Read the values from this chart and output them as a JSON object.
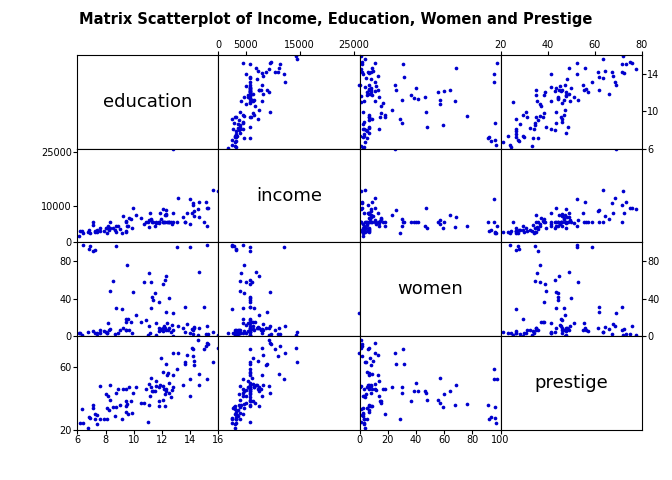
{
  "title": "Matrix Scatterplot of Income, Education, Women and Prestige",
  "variables": [
    "education",
    "income",
    "women",
    "prestige"
  ],
  "dot_color": "#0000CD",
  "dot_size": 7,
  "education": [
    13.11,
    12.79,
    12.05,
    12.26,
    11.86,
    14.64,
    15.64,
    15.09,
    14.52,
    14.13,
    14.02,
    12.27,
    12.24,
    11.13,
    11.79,
    14.0,
    10.17,
    11.22,
    12.27,
    11.59,
    12.79,
    14.6,
    15.22,
    9.84,
    9.45,
    8.55,
    10.76,
    9.93,
    7.11,
    6.84,
    11.24,
    8.1,
    10.54,
    9.21,
    11.09,
    9.64,
    12.63,
    13.47,
    12.17,
    11.07,
    11.53,
    11.78,
    12.52,
    12.73,
    12.8,
    7.58,
    7.26,
    11.56,
    13.6,
    15.01,
    8.76,
    6.1,
    7.38,
    8.64,
    9.88,
    11.33,
    9.58,
    10.99,
    11.8,
    10.88,
    7.12,
    8.15,
    12.04,
    8.76,
    6.9,
    7.24,
    8.34,
    6.43,
    9.53,
    12.2,
    13.09,
    7.64,
    6.32,
    7.4,
    6.76,
    14.22,
    15.96,
    8.0,
    8.86,
    9.2,
    9.44,
    8.3,
    9.42,
    7.86,
    9.03,
    6.19,
    8.27,
    13.62,
    9.42,
    11.4,
    8.14,
    12.49,
    12.33,
    14.25,
    11.9,
    15.21,
    13.74,
    14.29,
    15.28,
    12.05,
    14.21,
    12.4
  ],
  "income": [
    12351,
    25879,
    9271,
    8865,
    8286,
    11187,
    14558,
    11299,
    9374,
    8034,
    12130,
    7562,
    7482,
    8033,
    5765,
    5092,
    7562,
    6477,
    7842,
    5765,
    8049,
    6936,
    4505,
    6389,
    5993,
    4064,
    5148,
    9424,
    5765,
    3316,
    6148,
    3939,
    6799,
    7375,
    6344,
    6641,
    5765,
    7028,
    5765,
    4171,
    4686,
    5498,
    5765,
    5065,
    5765,
    3152,
    3005,
    5459,
    5765,
    5765,
    4522,
    1688,
    3027,
    3544,
    4059,
    5765,
    4573,
    5765,
    5765,
    5765,
    4716,
    4449,
    5765,
    2849,
    2551,
    3162,
    4049,
    2498,
    4685,
    5765,
    5765,
    4053,
    3080,
    3422,
    2985,
    10959,
    14238,
    3881,
    4542,
    2596,
    3199,
    5765,
    5765,
    3288,
    3817,
    3162,
    3547,
    5765,
    3025,
    5765,
    2734,
    5765,
    5765,
    8722,
    6400,
    9593,
    8279,
    7305,
    9686,
    5765,
    10432,
    5765
  ],
  "women": [
    11.16,
    24.94,
    8.13,
    25.68,
    6.35,
    8.89,
    4.02,
    1.91,
    1.06,
    7.02,
    95.23,
    64.15,
    8.42,
    3.46,
    8.9,
    2.71,
    22.73,
    30.07,
    6.37,
    1.34,
    6.89,
    68.41,
    97.51,
    15.43,
    14.55,
    59.12,
    57.3,
    46.91,
    90.76,
    93.27,
    57.37,
    3.29,
    15.36,
    8.52,
    10.86,
    6.38,
    3.83,
    8.2,
    10.71,
    67.42,
    46.41,
    4.95,
    8.16,
    11.97,
    0.5,
    2.85,
    2.75,
    13.5,
    4.78,
    30.64,
    30.33,
    2.71,
    3.1,
    2.25,
    2.76,
    41.54,
    18.01,
    0.9,
    36.37,
    16.67,
    5.26,
    13.6,
    55.58,
    95.72,
    96.11,
    91.72,
    47.92,
    96.77,
    76.02,
    59.78,
    95.43,
    6.59,
    0.71,
    0.5,
    4.1,
    2.04,
    1.25,
    4.67,
    3.23,
    28.96,
    6.58,
    6.97,
    17.98,
    5.53,
    6.49,
    3.12,
    6.56,
    31.37,
    6.9,
    38.79,
    2.73,
    40.29,
    13.39,
    8.12,
    7.57,
    11.16,
    12.93,
    9.74,
    1.74,
    5.42,
    6.23,
    6.53
  ],
  "prestige": [
    68.8,
    69.1,
    47.7,
    62.0,
    48.9,
    55.9,
    63.4,
    73.5,
    77.6,
    72.6,
    52.4,
    45.0,
    34.9,
    41.5,
    34.9,
    41.4,
    47.3,
    47.1,
    46.3,
    47.8,
    55.0,
    48.9,
    52.5,
    38.5,
    38.1,
    34.5,
    36.9,
    43.5,
    35.7,
    27.8,
    53.0,
    26.5,
    37.3,
    46.3,
    49.4,
    47.0,
    41.2,
    48.3,
    45.8,
    35.6,
    44.5,
    47.6,
    43.6,
    45.3,
    47.4,
    26.5,
    30.1,
    51.1,
    63.5,
    71.5,
    43.7,
    15.2,
    23.3,
    28.4,
    30.6,
    44.6,
    29.7,
    25.1,
    38.3,
    45.9,
    33.6,
    41.4,
    39.0,
    34.4,
    27.5,
    26.5,
    39.2,
    24.1,
    36.7,
    43.1,
    59.0,
    47.8,
    33.2,
    29.6,
    21.2,
    67.5,
    72.1,
    43.1,
    46.3,
    26.7,
    31.2,
    48.7,
    45.8,
    26.5,
    35.8,
    24.3,
    32.4,
    62.0,
    35.2,
    44.6,
    34.0,
    50.0,
    55.3,
    61.6,
    66.0,
    75.7,
    67.8,
    64.2,
    74.9,
    57.2,
    71.5,
    56.4
  ],
  "xlims": {
    "education": [
      6,
      16
    ],
    "income": [
      0,
      26000
    ],
    "women": [
      0,
      100
    ],
    "prestige": [
      20,
      80
    ]
  },
  "top_xticks": {
    "education": [],
    "income": [
      0,
      5000,
      15000,
      25000
    ],
    "women": [],
    "prestige": [
      20,
      40,
      60,
      80
    ]
  },
  "bottom_xticks": {
    "education": [
      6,
      8,
      10,
      12,
      14,
      16
    ],
    "income": [],
    "women": [
      0,
      20,
      40,
      60,
      80,
      100
    ],
    "prestige": []
  },
  "left_yticks": {
    "education": [],
    "income": [
      0,
      10000,
      25000
    ],
    "women": [
      0,
      40,
      80
    ],
    "prestige": [
      20,
      60
    ]
  },
  "right_yticks": {
    "education": [
      6,
      10,
      14
    ],
    "income": [],
    "women": [
      0,
      40,
      80
    ],
    "prestige": []
  }
}
